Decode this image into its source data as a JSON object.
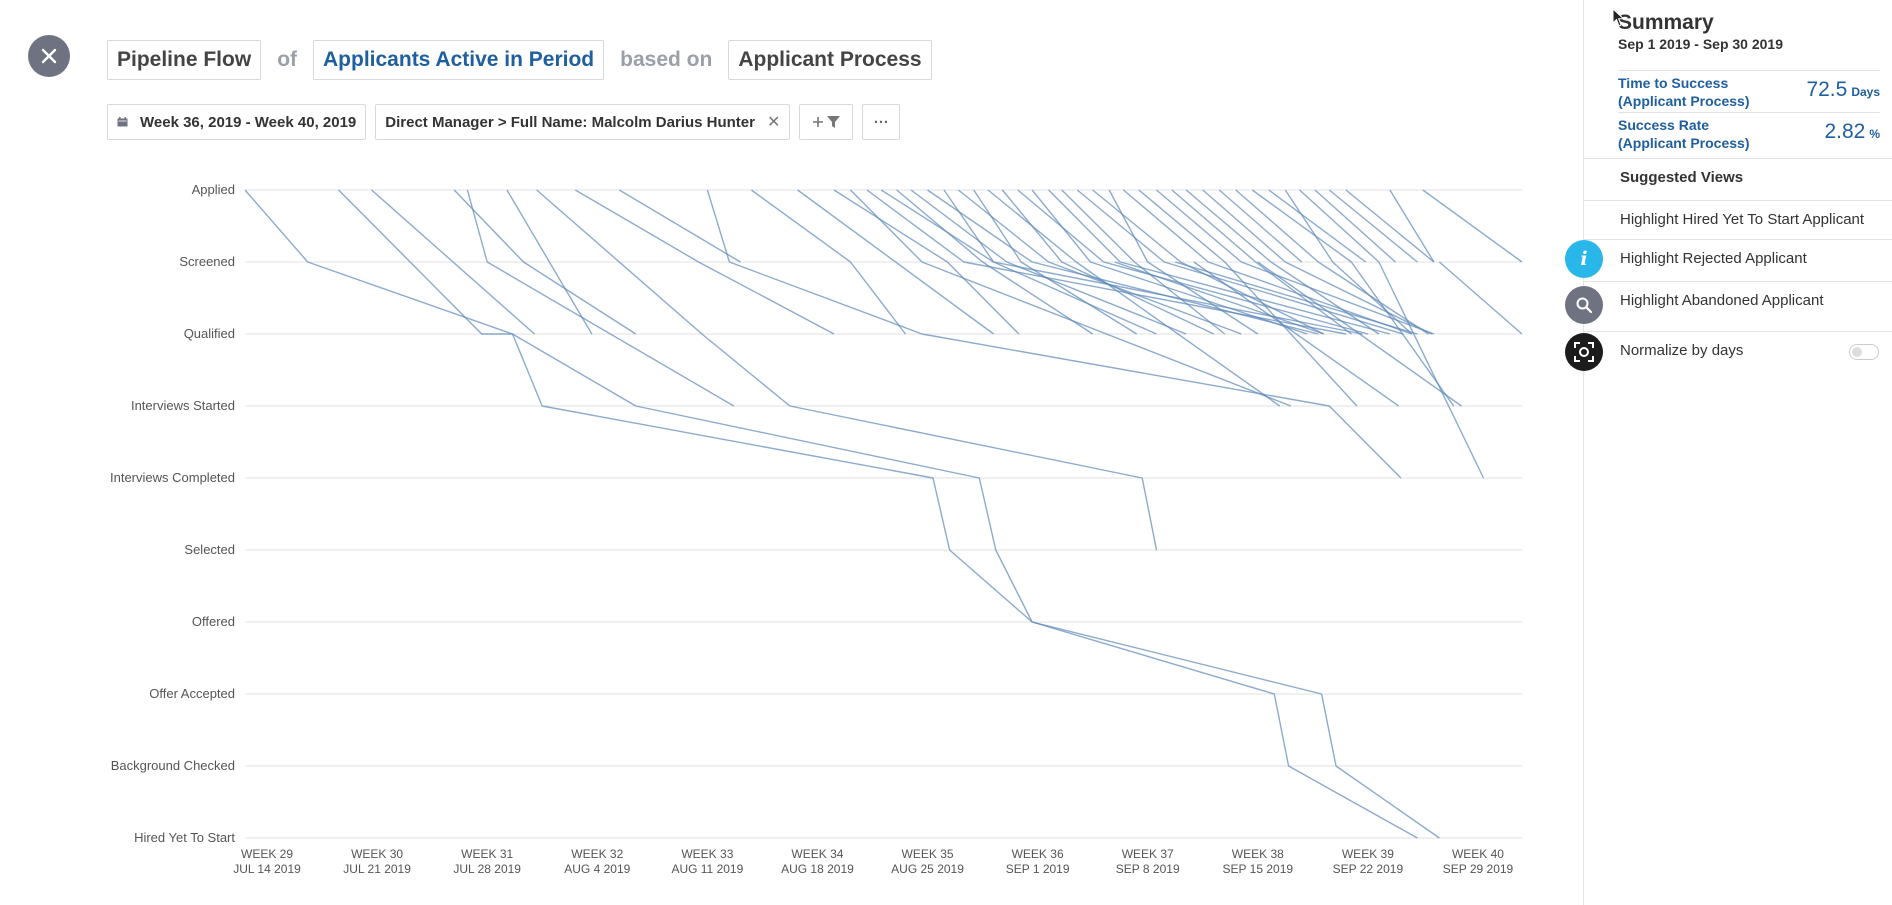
{
  "header": {
    "metric": "Pipeline Flow",
    "of": "of",
    "population": "Applicants Active in Period",
    "based_on": "based on",
    "process": "Applicant Process"
  },
  "filters": {
    "date_range": "Week 36, 2019 - Week 40, 2019",
    "manager_filter": "Direct Manager > Full Name: Malcolm Darius Hunter",
    "add_filter_icon": "plus-filter-icon",
    "more_label": "···"
  },
  "summary": {
    "title": "Summary",
    "range": "Sep 1 2019 - Sep 30 2019",
    "time_to_success": {
      "label": "Time to Success (Applicant Process)",
      "value": "72.5",
      "unit": "Days"
    },
    "success_rate": {
      "label": "Success Rate (Applicant Process)",
      "value": "2.82",
      "unit": "%"
    },
    "suggested_views_label": "Suggested Views",
    "suggested_views": [
      "Highlight Hired Yet To Start Applicant",
      "Highlight Rejected Applicant",
      "Highlight Abandoned Applicant"
    ],
    "normalize_label": "Normalize by days",
    "normalize_on": false
  },
  "colors": {
    "accent": "#1f5fa0",
    "line": "#5b87b8",
    "fab_info": "#29b6e8",
    "fab_search": "#6f7280",
    "fab_snapshot": "#1c1c1c"
  },
  "chart_data": {
    "type": "line",
    "title": "",
    "stages": [
      "Applied",
      "Screened",
      "Qualified",
      "Interviews Started",
      "Interviews Completed",
      "Selected",
      "Offered",
      "Offer Accepted",
      "Background Checked",
      "Hired Yet To Start"
    ],
    "x_ticks": [
      {
        "week": "WEEK 29",
        "date": "JUL 14 2019"
      },
      {
        "week": "WEEK 30",
        "date": "JUL 21 2019"
      },
      {
        "week": "WEEK 31",
        "date": "JUL 28 2019"
      },
      {
        "week": "WEEK 32",
        "date": "AUG 4 2019"
      },
      {
        "week": "WEEK 33",
        "date": "AUG 11 2019"
      },
      {
        "week": "WEEK 34",
        "date": "AUG 18 2019"
      },
      {
        "week": "WEEK 35",
        "date": "AUG 25 2019"
      },
      {
        "week": "WEEK 36",
        "date": "SEP 1 2019"
      },
      {
        "week": "WEEK 37",
        "date": "SEP 8 2019"
      },
      {
        "week": "WEEK 38",
        "date": "SEP 15 2019"
      },
      {
        "week": "WEEK 39",
        "date": "SEP 22 2019"
      },
      {
        "week": "WEEK 40",
        "date": "SEP 29 2019"
      }
    ],
    "x_unit": "week",
    "xlim": [
      28.8,
      40.4
    ],
    "paths": [
      [
        [
          28.8,
          0
        ],
        [
          29.37,
          1
        ],
        [
          31.23,
          2
        ],
        [
          31.5,
          3
        ],
        [
          35.05,
          4
        ],
        [
          35.2,
          5
        ],
        [
          35.95,
          6
        ],
        [
          38.15,
          7
        ],
        [
          38.28,
          8
        ],
        [
          39.45,
          9
        ]
      ],
      [
        [
          29.65,
          0
        ],
        [
          30.95,
          2
        ],
        [
          31.23,
          2
        ],
        [
          32.35,
          3
        ],
        [
          35.47,
          4
        ],
        [
          35.62,
          5
        ],
        [
          35.95,
          6
        ],
        [
          38.58,
          7
        ],
        [
          38.71,
          8
        ],
        [
          39.65,
          9
        ]
      ],
      [
        [
          29.95,
          0
        ],
        [
          31.43,
          2
        ]
      ],
      [
        [
          30.7,
          0
        ],
        [
          31.33,
          1
        ],
        [
          32.35,
          2
        ]
      ],
      [
        [
          30.82,
          0
        ],
        [
          31.0,
          1
        ],
        [
          33.24,
          3
        ]
      ],
      [
        [
          31.18,
          0
        ],
        [
          31.95,
          2
        ]
      ],
      [
        [
          31.45,
          0
        ],
        [
          32.95,
          2
        ],
        [
          33.75,
          3
        ],
        [
          36.95,
          4
        ],
        [
          37.08,
          5
        ]
      ],
      [
        [
          31.8,
          0
        ],
        [
          32.92,
          1
        ],
        [
          34.15,
          2
        ]
      ],
      [
        [
          32.2,
          0
        ],
        [
          33.3,
          1
        ]
      ],
      [
        [
          33.0,
          0
        ],
        [
          33.2,
          1
        ],
        [
          34.95,
          2
        ],
        [
          38.65,
          3
        ],
        [
          39.3,
          4
        ]
      ],
      [
        [
          33.4,
          0
        ],
        [
          34.3,
          1
        ],
        [
          34.8,
          2
        ]
      ],
      [
        [
          33.82,
          0
        ],
        [
          35.6,
          2
        ]
      ],
      [
        [
          34.15,
          0
        ],
        [
          35.18,
          1
        ],
        [
          35.83,
          2
        ]
      ],
      [
        [
          34.3,
          0
        ],
        [
          34.95,
          1
        ],
        [
          38.3,
          3
        ]
      ],
      [
        [
          34.45,
          0
        ],
        [
          35.33,
          1
        ],
        [
          38.8,
          2
        ]
      ],
      [
        [
          34.58,
          0
        ],
        [
          35.6,
          1
        ],
        [
          37.08,
          2
        ]
      ],
      [
        [
          34.72,
          0
        ],
        [
          35.5,
          1
        ],
        [
          36.5,
          2
        ]
      ],
      [
        [
          34.85,
          0
        ],
        [
          35.72,
          1
        ],
        [
          37.35,
          2
        ]
      ],
      [
        [
          35.0,
          0
        ],
        [
          35.95,
          1
        ],
        [
          38.55,
          2
        ]
      ],
      [
        [
          35.15,
          0
        ],
        [
          35.6,
          1
        ],
        [
          38.95,
          2
        ]
      ],
      [
        [
          35.28,
          0
        ],
        [
          36.1,
          1
        ],
        [
          37.85,
          2
        ]
      ],
      [
        [
          35.42,
          0
        ],
        [
          35.85,
          1
        ],
        [
          36.9,
          2
        ]
      ],
      [
        [
          35.55,
          0
        ],
        [
          36.35,
          1
        ],
        [
          38.2,
          3
        ]
      ],
      [
        [
          35.68,
          0
        ],
        [
          36.22,
          1
        ],
        [
          37.6,
          2
        ]
      ],
      [
        [
          35.82,
          0
        ],
        [
          36.6,
          1
        ],
        [
          39.0,
          2
        ]
      ],
      [
        [
          35.95,
          0
        ],
        [
          36.48,
          1
        ],
        [
          38.45,
          2
        ]
      ],
      [
        [
          36.1,
          0
        ],
        [
          36.75,
          1
        ],
        [
          39.2,
          2
        ]
      ],
      [
        [
          36.22,
          0
        ],
        [
          36.88,
          1
        ],
        [
          37.7,
          2
        ]
      ],
      [
        [
          36.36,
          0
        ],
        [
          37.15,
          1
        ],
        [
          39.32,
          2
        ]
      ],
      [
        [
          36.5,
          0
        ],
        [
          37.3,
          1
        ],
        [
          38.6,
          2
        ]
      ],
      [
        [
          36.65,
          0
        ],
        [
          37.0,
          1
        ],
        [
          38.0,
          2
        ]
      ],
      [
        [
          36.78,
          0
        ],
        [
          37.55,
          1
        ],
        [
          39.4,
          2
        ]
      ],
      [
        [
          36.92,
          0
        ],
        [
          37.7,
          1
        ],
        [
          38.9,
          3
        ]
      ],
      [
        [
          37.08,
          0
        ],
        [
          37.85,
          1
        ],
        [
          39.6,
          2
        ]
      ],
      [
        [
          37.22,
          0
        ],
        [
          37.98,
          1
        ],
        [
          38.85,
          2
        ]
      ],
      [
        [
          37.35,
          0
        ],
        [
          38.12,
          1
        ],
        [
          39.1,
          2
        ]
      ],
      [
        [
          37.5,
          0
        ],
        [
          38.25,
          1
        ],
        [
          39.58,
          2
        ]
      ],
      [
        [
          37.65,
          0
        ],
        [
          38.4,
          1
        ]
      ],
      [
        [
          37.8,
          0
        ],
        [
          38.55,
          1
        ],
        [
          39.55,
          2
        ]
      ],
      [
        [
          37.95,
          0
        ],
        [
          38.85,
          1
        ],
        [
          39.78,
          3
        ]
      ],
      [
        [
          38.1,
          0
        ],
        [
          38.98,
          1
        ]
      ],
      [
        [
          38.25,
          0
        ],
        [
          38.68,
          1
        ],
        [
          39.4,
          2
        ]
      ],
      [
        [
          38.38,
          0
        ],
        [
          39.1,
          1
        ],
        [
          40.05,
          4
        ]
      ],
      [
        [
          38.52,
          0
        ],
        [
          39.25,
          1
        ]
      ],
      [
        [
          38.65,
          0
        ],
        [
          39.45,
          1
        ]
      ],
      [
        [
          38.8,
          0
        ],
        [
          39.6,
          1
        ]
      ],
      [
        [
          39.2,
          0
        ],
        [
          39.6,
          1
        ]
      ],
      [
        [
          39.5,
          0
        ],
        [
          40.4,
          1
        ]
      ],
      [
        [
          38.0,
          1
        ],
        [
          39.85,
          3
        ]
      ],
      [
        [
          39.65,
          1
        ],
        [
          40.4,
          2
        ]
      ],
      [
        [
          37.42,
          1
        ],
        [
          39.28,
          3
        ]
      ],
      [
        [
          36.7,
          1
        ],
        [
          38.6,
          2
        ]
      ],
      [
        [
          37.25,
          1
        ],
        [
          39.45,
          2
        ]
      ]
    ]
  }
}
